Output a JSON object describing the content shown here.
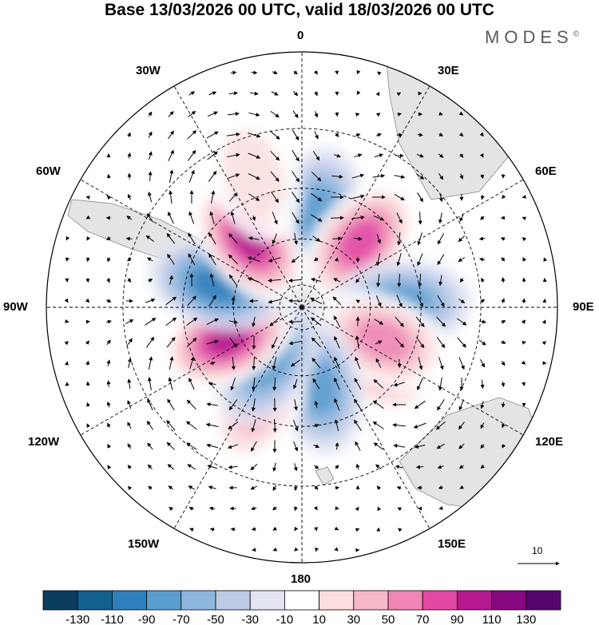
{
  "title": "Base 13/03/2026 00 UTC, valid 18/03/2026 00 UTC",
  "brand": "MODES",
  "brand_mark": "©",
  "longitude_labels": {
    "lon_0": "0",
    "lon_30e": "30E",
    "lon_60e": "60E",
    "lon_90e": "90E",
    "lon_120e": "120E",
    "lon_150e": "150E",
    "lon_180": "180",
    "lon_150w": "150W",
    "lon_120w": "120W",
    "lon_90w": "90W",
    "lon_60w": "60W",
    "lon_30w": "30W"
  },
  "reference_vector": {
    "label": "10"
  },
  "colorbar": {
    "ticks": [
      "-130",
      "-110",
      "-90",
      "-70",
      "-50",
      "-30",
      "-10",
      "10",
      "30",
      "50",
      "70",
      "90",
      "110",
      "130"
    ],
    "colors": [
      "#0b3d5e",
      "#14608f",
      "#2f7fbd",
      "#5a9ed0",
      "#8fb7de",
      "#bccbe6",
      "#e2e4f2",
      "#ffffff",
      "#fcdede",
      "#f6b8c8",
      "#ef86b5",
      "#e04aa4",
      "#b4198f",
      "#86097f",
      "#55066e"
    ]
  },
  "anomaly_centers": [
    {
      "lon": 10,
      "lat": -50,
      "value": -70
    },
    {
      "lon": 42,
      "lat": -52,
      "value": 95
    },
    {
      "lon": 88,
      "lat": -47,
      "value": -75
    },
    {
      "lon": 128,
      "lat": -50,
      "value": 55
    },
    {
      "lon": 112,
      "lat": -52,
      "value": 70
    },
    {
      "lon": 168,
      "lat": -55,
      "value": -60
    },
    {
      "lon": -155,
      "lat": -45,
      "value": 50
    },
    {
      "lon": -148,
      "lat": -62,
      "value": -60
    },
    {
      "lon": -113,
      "lat": -55,
      "value": 110
    },
    {
      "lon": -75,
      "lat": -52,
      "value": -95
    },
    {
      "lon": -38,
      "lat": -53,
      "value": 115
    },
    {
      "lon": -20,
      "lat": -32,
      "value": 30
    }
  ]
}
